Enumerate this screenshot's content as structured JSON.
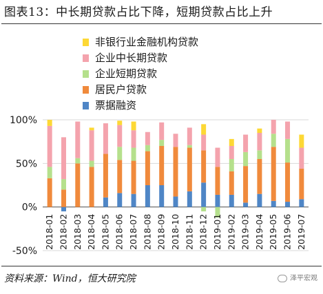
{
  "title": "图表13：中长期贷款占比下降，短期贷款占比上升",
  "source": "资料来源：Wind，恒大研究院",
  "watermark": "泽平宏观",
  "colors": {
    "nonbank": "#fdd835",
    "corp_long": "#f4a3ad",
    "corp_short": "#b5e08c",
    "household": "#f08a3c",
    "bills": "#4f86c6",
    "grid": "#d9d9d9",
    "axis": "#555555"
  },
  "chart_data": {
    "type": "bar",
    "stacked": true,
    "categories": [
      "2018-01",
      "2018-02",
      "2018-03",
      "2018-04",
      "2018-05",
      "2018-06",
      "2018-07",
      "2018-08",
      "2018-09",
      "2018-10",
      "2018-11",
      "2018-12",
      "2019-01",
      "2019-02",
      "2019-03",
      "2019-04",
      "2019-05",
      "2019-06",
      "2019-07"
    ],
    "ylim": [
      -50,
      100
    ],
    "yticks": [
      "-50%",
      "0%",
      "50%",
      "100%"
    ],
    "ytick_values": [
      -50,
      0,
      50,
      100
    ],
    "legend_position": "top",
    "series": [
      {
        "name": "非银行业金融机构贷款",
        "color_key": "nonbank",
        "values": [
          7,
          0,
          0,
          3,
          0,
          5,
          10,
          0,
          0,
          0,
          0,
          12,
          0,
          8,
          0,
          5,
          0,
          0,
          15
        ]
      },
      {
        "name": "企业中长期贷款",
        "color_key": "corp_long",
        "values": [
          47,
          48,
          42,
          35,
          35,
          25,
          20,
          15,
          20,
          15,
          20,
          18,
          22,
          15,
          20,
          20,
          16,
          20,
          24
        ]
      },
      {
        "name": "企业短期贷款",
        "color_key": "corp_short",
        "values": [
          13,
          12,
          6,
          7,
          0,
          15,
          15,
          7,
          7,
          0,
          3,
          -5,
          -12,
          14,
          16,
          10,
          15,
          27,
          0
        ]
      },
      {
        "name": "居民户贷款",
        "color_key": "household",
        "values": [
          33,
          20,
          50,
          46,
          50,
          38,
          38,
          39,
          45,
          57,
          50,
          37,
          32,
          27,
          42,
          40,
          62,
          45,
          35
        ]
      },
      {
        "name": "票据融资",
        "color_key": "bills",
        "values": [
          0,
          -5,
          0,
          0,
          11,
          16,
          15,
          25,
          25,
          12,
          18,
          28,
          14,
          14,
          5,
          15,
          7,
          6,
          9
        ]
      }
    ]
  }
}
